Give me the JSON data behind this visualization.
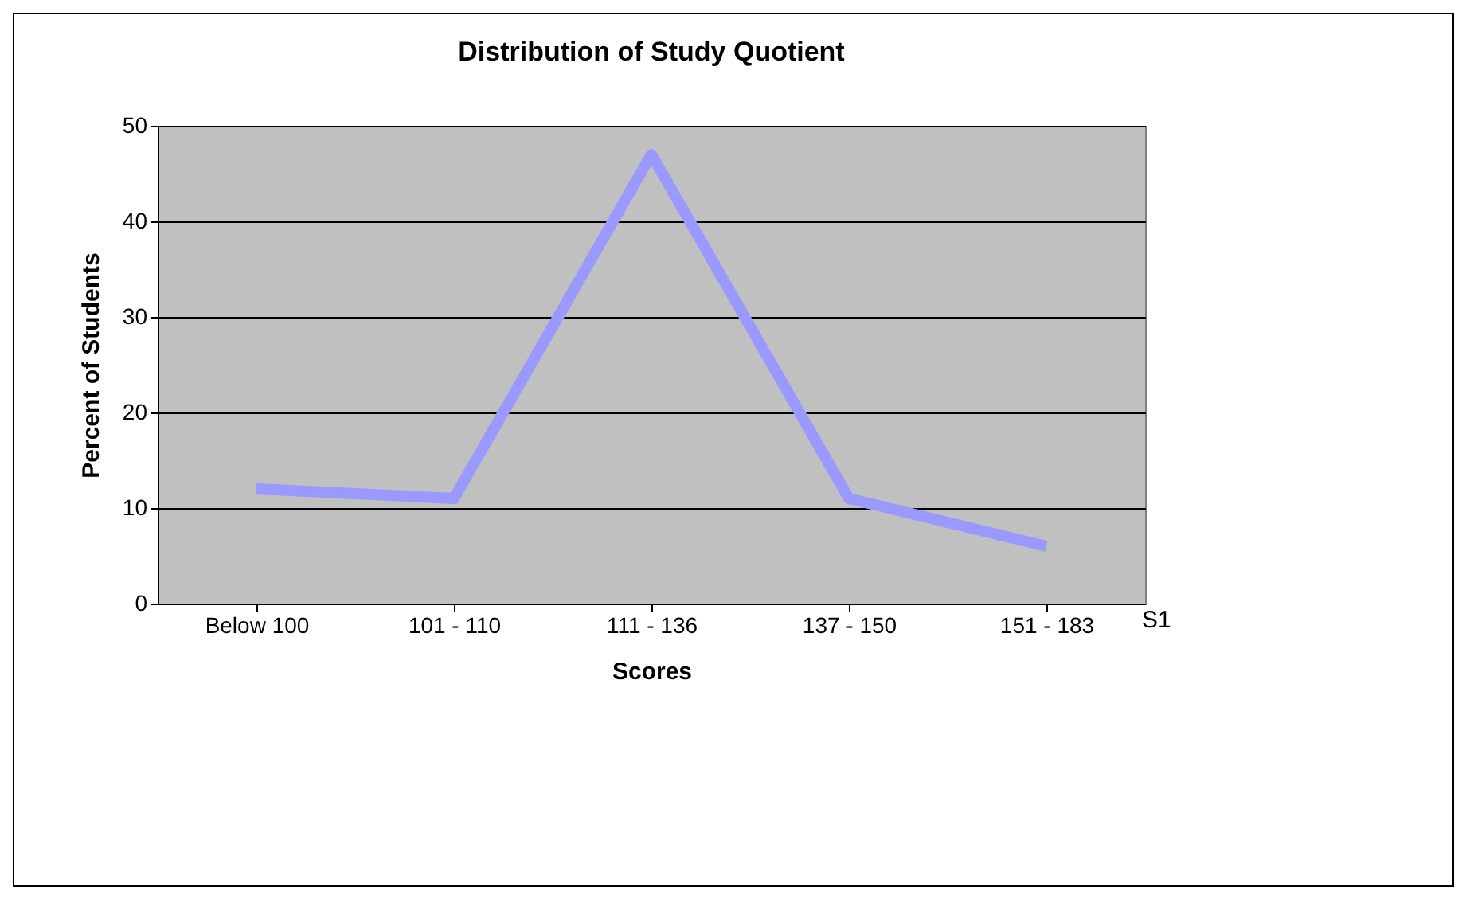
{
  "chart_data": {
    "type": "line",
    "title": "Distribution of Study Quotient",
    "xlabel": "Scores",
    "ylabel": "Percent of Students",
    "categories": [
      "Below 100",
      "101 - 110",
      "111 - 136",
      "137 - 150",
      "151 - 183"
    ],
    "series": [
      {
        "name": "S1",
        "color": "#9999ff",
        "values": [
          12,
          11,
          47,
          11,
          6
        ]
      }
    ],
    "ylim": [
      0,
      50
    ],
    "yticks": [
      0,
      10,
      20,
      30,
      40,
      50
    ],
    "grid": "y",
    "legend": false
  }
}
